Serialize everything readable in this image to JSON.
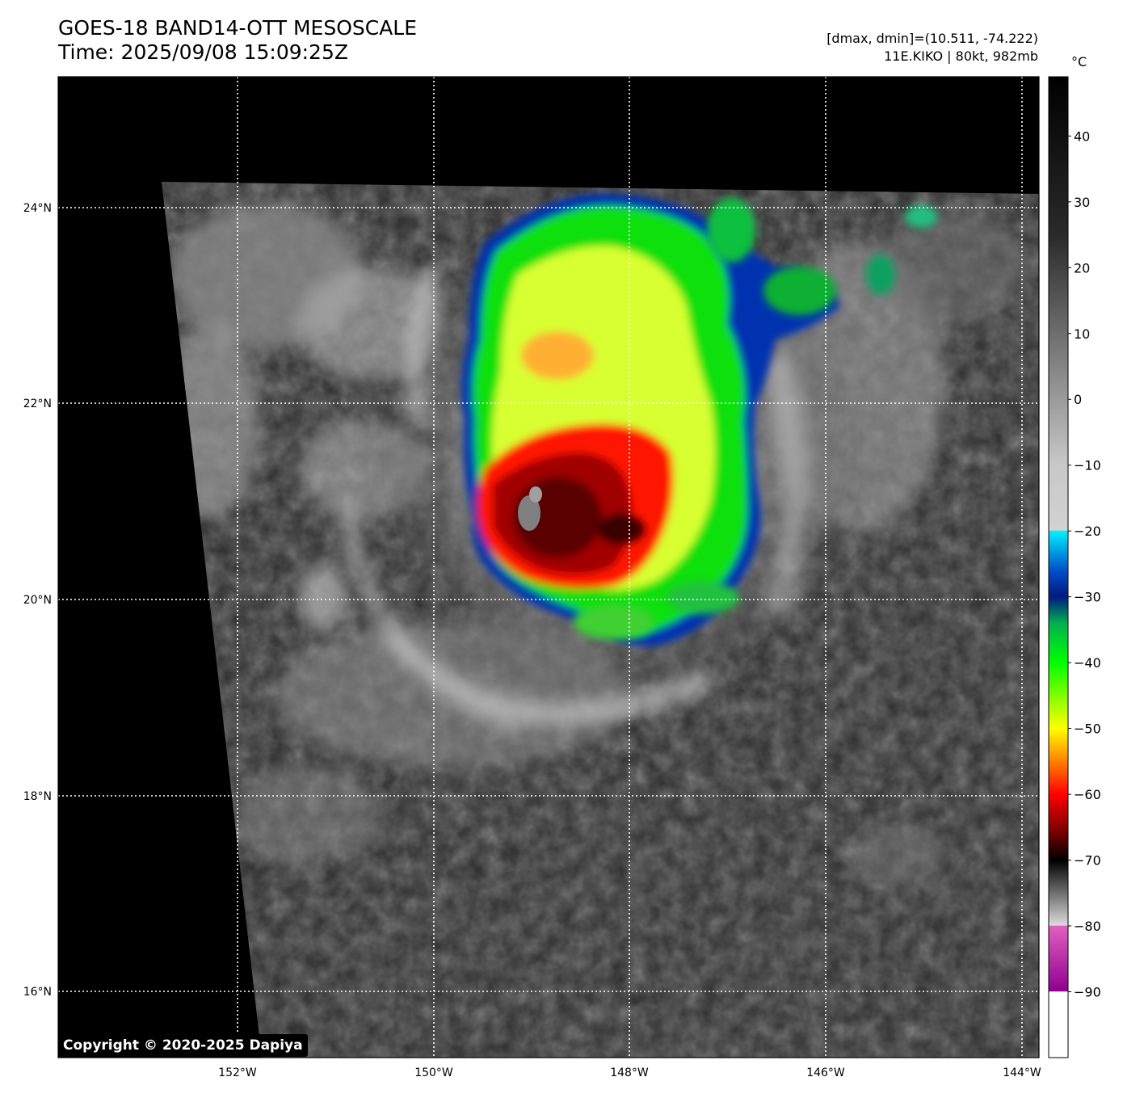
{
  "header": {
    "title": "GOES-18 BAND14-OTT MESOSCALE",
    "time": "Time: 2025/09/08 15:09:25Z",
    "dmax_dmin": "[dmax, dmin]=(10.511, -74.222)",
    "storm": "11E.KIKO | 80kt, 982mb"
  },
  "colorbar": {
    "unit": "°C",
    "ticks": [
      "40",
      "30",
      "20",
      "10",
      "0",
      "−10",
      "−20",
      "−30",
      "−40",
      "−50",
      "−60",
      "−70",
      "−80",
      "−90"
    ],
    "stops": [
      {
        "t": 49,
        "color": "#000000"
      },
      {
        "t": 25,
        "color": "#2a2a2a"
      },
      {
        "t": -10,
        "color": "#c8c8c8"
      },
      {
        "t": -19.9,
        "color": "#d2d2d2"
      },
      {
        "t": -20,
        "color": "#00f0ff"
      },
      {
        "t": -26,
        "color": "#0050c8"
      },
      {
        "t": -30,
        "color": "#001a80"
      },
      {
        "t": -34,
        "color": "#00b050"
      },
      {
        "t": -40,
        "color": "#00ff00"
      },
      {
        "t": -50,
        "color": "#ffff00"
      },
      {
        "t": -60,
        "color": "#ff0000"
      },
      {
        "t": -66,
        "color": "#700000"
      },
      {
        "t": -70,
        "color": "#000000"
      },
      {
        "t": -79.9,
        "color": "#dcdcdc"
      },
      {
        "t": -80,
        "color": "#e060c0"
      },
      {
        "t": -89.9,
        "color": "#900090"
      },
      {
        "t": -90,
        "color": "#ffffff"
      },
      {
        "t": -100,
        "color": "#ffffff"
      }
    ]
  },
  "axes": {
    "lon_labels": [
      "152°W",
      "150°W",
      "148°W",
      "146°W",
      "144°W"
    ],
    "lat_labels": [
      "24°N",
      "22°N",
      "20°N",
      "18°N",
      "16°N"
    ]
  },
  "copyright": "Copyright © 2020-2025 Dapiya",
  "colors": {
    "space": "#000000",
    "ocean": "#2c2c2c",
    "grid": "#ffffff"
  }
}
